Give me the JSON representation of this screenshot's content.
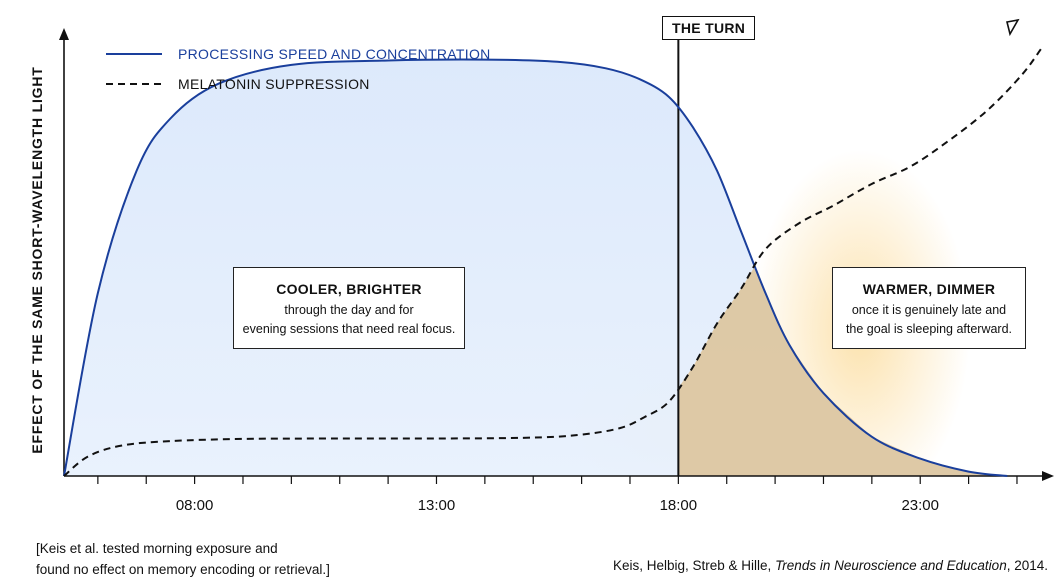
{
  "chart_data": {
    "type": "line",
    "ylabel": "EFFECT OF THE SAME SHORT-WAVELENGTH LIGHT",
    "xlabel": "",
    "x_ticks": [
      "08:00",
      "13:00",
      "18:00",
      "23:00"
    ],
    "xlim": [
      5.3,
      25.6
    ],
    "ylim": [
      0,
      1
    ],
    "series": [
      {
        "name": "PROCESSING SPEED AND CONCENTRATION",
        "style": "solid",
        "color": "#1a3f9c",
        "x": [
          5.3,
          6.0,
          6.8,
          7.5,
          8.5,
          10.0,
          12.0,
          14.0,
          15.5,
          16.5,
          17.2,
          17.8,
          18.3,
          18.8,
          19.3,
          19.8,
          20.3,
          21.0,
          22.0,
          23.0,
          24.0,
          24.8
        ],
        "y": [
          0.0,
          0.42,
          0.7,
          0.82,
          0.9,
          0.943,
          0.953,
          0.955,
          0.95,
          0.935,
          0.91,
          0.87,
          0.8,
          0.7,
          0.56,
          0.42,
          0.3,
          0.19,
          0.09,
          0.04,
          0.01,
          0.0
        ]
      },
      {
        "name": "MELATONIN SUPPRESSION",
        "style": "dashed",
        "color": "#111111",
        "x": [
          5.3,
          5.8,
          6.5,
          7.5,
          9.0,
          11.0,
          13.0,
          15.0,
          16.0,
          16.8,
          17.3,
          17.8,
          18.3,
          18.8,
          19.3,
          19.8,
          20.5,
          21.2,
          22.0,
          22.8,
          23.6,
          24.4,
          25.1,
          25.5
        ],
        "y": [
          0.0,
          0.045,
          0.07,
          0.08,
          0.085,
          0.086,
          0.086,
          0.088,
          0.095,
          0.11,
          0.135,
          0.17,
          0.25,
          0.35,
          0.43,
          0.52,
          0.58,
          0.62,
          0.67,
          0.71,
          0.77,
          0.84,
          0.92,
          0.98
        ]
      }
    ],
    "annotations": [
      {
        "type": "vline",
        "x": 18.0,
        "label": "THE TURN"
      },
      {
        "type": "box",
        "title": "COOLER, BRIGHTER",
        "lines": [
          "through the day and for",
          "evening sessions that need real focus."
        ]
      },
      {
        "type": "box",
        "title": "WARMER, DIMMER",
        "lines": [
          "once it is genuinely late and",
          "the goal is sleeping afterward."
        ]
      }
    ],
    "legend": "top-left",
    "grid": false
  },
  "footnotes": {
    "left": [
      "[Keis et al. tested morning exposure and",
      "found no effect on memory encoding or retrieval.]"
    ],
    "right_authors": "Keis, Helbig, Streb & Hille, ",
    "right_journal": "Trends in Neuroscience and Education",
    "right_year": ", 2014."
  }
}
